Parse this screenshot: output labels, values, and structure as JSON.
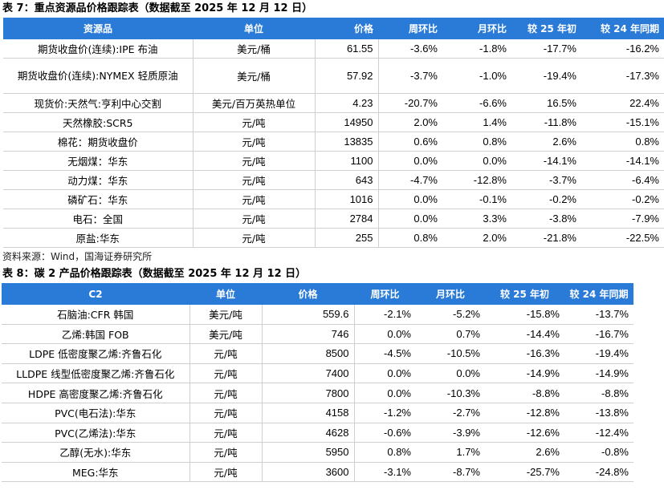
{
  "table1": {
    "caption": "表 7：重点资源品价格跟踪表（数据截至 2025 年 12 月 12 日）",
    "headers": [
      "资源品",
      "单位",
      "价格",
      "周环比",
      "月环比",
      "较 25 年初",
      "较 24 年同期"
    ],
    "rows": [
      [
        "期货收盘价(连续):IPE 布油",
        "美元/桶",
        "61.55",
        "-3.6%",
        "-1.8%",
        "-17.7%",
        "-16.2%"
      ],
      [
        "期货收盘价(连续):NYMEX 轻质原油",
        "美元/桶",
        "57.92",
        "-3.7%",
        "-1.0%",
        "-19.4%",
        "-17.3%"
      ],
      [
        "现货价:天然气:亨利中心交割",
        "美元/百万英热单位",
        "4.23",
        "-20.7%",
        "-6.6%",
        "16.5%",
        "22.4%"
      ],
      [
        "天然橡胶:SCR5",
        "元/吨",
        "14950",
        "2.0%",
        "1.4%",
        "-11.8%",
        "-15.1%"
      ],
      [
        "棉花：期货收盘价",
        "元/吨",
        "13835",
        "0.6%",
        "0.8%",
        "2.6%",
        "0.8%"
      ],
      [
        "无烟煤：华东",
        "元/吨",
        "1100",
        "0.0%",
        "0.0%",
        "-14.1%",
        "-14.1%"
      ],
      [
        "动力煤：华东",
        "元/吨",
        "643",
        "-4.7%",
        "-12.8%",
        "-3.7%",
        "-6.4%"
      ],
      [
        "磷矿石：华东",
        "元/吨",
        "1016",
        "0.0%",
        "-0.1%",
        "-0.2%",
        "-0.2%"
      ],
      [
        "电石：全国",
        "元/吨",
        "2784",
        "0.0%",
        "3.3%",
        "-3.8%",
        "-7.9%"
      ],
      [
        "原盐:华东",
        "元/吨",
        "255",
        "0.8%",
        "2.0%",
        "-21.8%",
        "-22.5%"
      ]
    ],
    "source": "资料来源：Wind，国海证券研究所"
  },
  "table2": {
    "caption": "表 8：碳 2 产品价格跟踪表（数据截至 2025 年 12 月 12 日）",
    "headers": [
      "C2",
      "单位",
      "价格",
      "周环比",
      "月环比",
      "较 25 年初",
      "较 24 年同期"
    ],
    "rows": [
      [
        "石脑油:CFR 韩国",
        "美元/吨",
        "559.6",
        "-2.1%",
        "-5.2%",
        "-15.8%",
        "-13.7%"
      ],
      [
        "乙烯:韩国 FOB",
        "美元/吨",
        "746",
        "0.0%",
        "0.7%",
        "-14.4%",
        "-16.7%"
      ],
      [
        "LDPE 低密度聚乙烯:齐鲁石化",
        "元/吨",
        "8500",
        "-4.5%",
        "-10.5%",
        "-16.3%",
        "-19.4%"
      ],
      [
        "LLDPE 线型低密度聚乙烯:齐鲁石化",
        "元/吨",
        "7400",
        "0.0%",
        "0.0%",
        "-14.9%",
        "-14.9%"
      ],
      [
        "HDPE 高密度聚乙烯:齐鲁石化",
        "元/吨",
        "7800",
        "0.0%",
        "-10.3%",
        "-8.8%",
        "-8.8%"
      ],
      [
        "PVC(电石法):华东",
        "元/吨",
        "4158",
        "-1.2%",
        "-2.7%",
        "-12.8%",
        "-13.8%"
      ],
      [
        "PVC(乙烯法):华东",
        "元/吨",
        "4628",
        "-0.6%",
        "-3.9%",
        "-12.6%",
        "-12.4%"
      ],
      [
        "乙醇(无水):华东",
        "元/吨",
        "5950",
        "0.8%",
        "1.7%",
        "2.6%",
        "-0.8%"
      ],
      [
        "MEG:华东",
        "元/吨",
        "3600",
        "-3.1%",
        "-8.7%",
        "-25.7%",
        "-24.8%"
      ]
    ]
  }
}
